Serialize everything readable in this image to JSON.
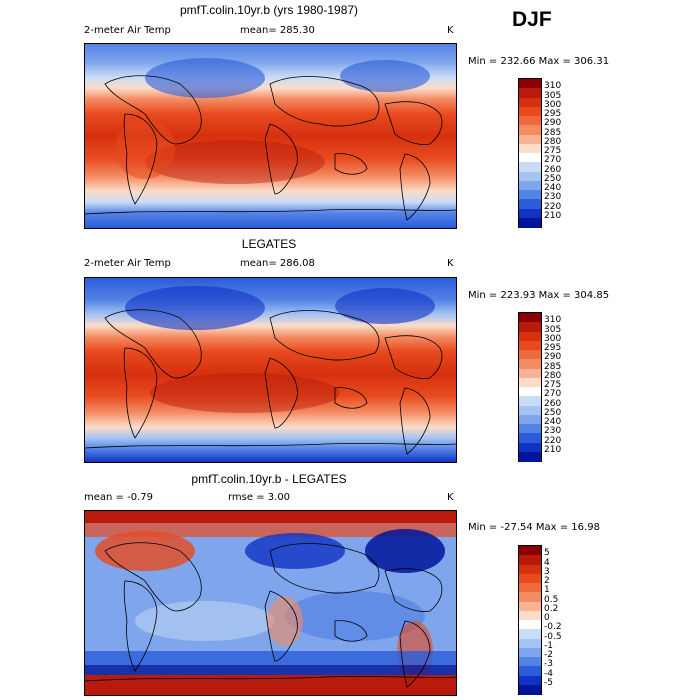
{
  "season": "DJF",
  "panels": [
    {
      "title": "pmfT.colin.10yr.b (yrs 1980-1987)",
      "left_label": "2-meter Air Temp",
      "mid_label": "mean=  285.30",
      "units": "K",
      "minmax": "Min = 232.66 Max = 306.31",
      "kind": "abs"
    },
    {
      "title": "LEGATES",
      "left_label": "2-meter Air Temp",
      "mid_label": "mean=  286.08",
      "units": "K",
      "minmax": "Min = 223.93 Max = 304.85",
      "kind": "abs"
    },
    {
      "title": "pmfT.colin.10yr.b - LEGATES",
      "left_label": "mean =   -0.79",
      "mid_label": "rmse =   3.00",
      "units": "K",
      "minmax": "Min = -27.54  Max =   16.98",
      "kind": "diff"
    }
  ],
  "colorbars": {
    "abs": {
      "labels": [
        "310",
        "305",
        "300",
        "295",
        "290",
        "285",
        "280",
        "275",
        "270",
        "260",
        "250",
        "240",
        "230",
        "220",
        "210"
      ],
      "colors": [
        "#8b0000",
        "#b81a0c",
        "#d6300f",
        "#e84a1e",
        "#ee6a3c",
        "#f48c63",
        "#f8b395",
        "#fbdcc8",
        "#ffffff",
        "#c8dcf8",
        "#a6c4f2",
        "#7fa6ec",
        "#5483e6",
        "#2b5cd9",
        "#1133c4",
        "#00159a"
      ]
    },
    "diff": {
      "labels": [
        "5",
        "4",
        "3",
        "2",
        "1",
        "0.5",
        "0.2",
        "0",
        "-0.2",
        "-0.5",
        "-1",
        "-2",
        "-3",
        "-4",
        "-5"
      ],
      "colors": [
        "#8b0000",
        "#b81a0c",
        "#d6300f",
        "#e84a1e",
        "#ee6a3c",
        "#f48c63",
        "#f8b395",
        "#fbdcc8",
        "#ffffff",
        "#c8dcf8",
        "#a6c4f2",
        "#7fa6ec",
        "#5483e6",
        "#2b5cd9",
        "#1133c4",
        "#00159a"
      ]
    }
  }
}
